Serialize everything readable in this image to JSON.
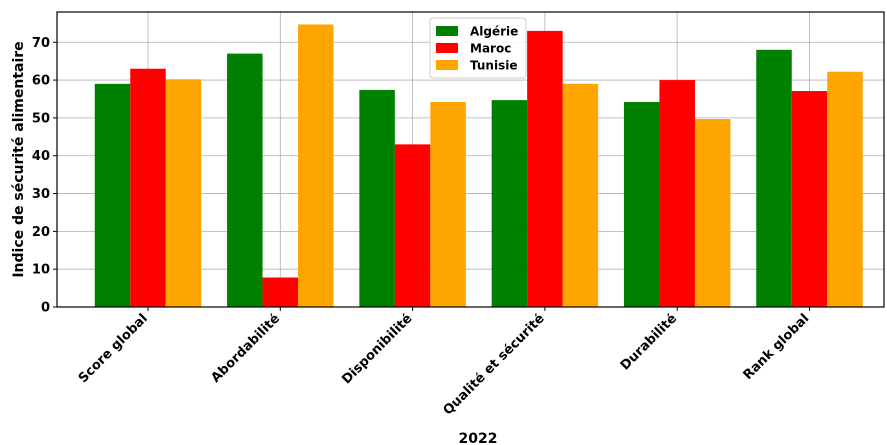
{
  "chart_data": {
    "type": "bar",
    "categories": [
      "Score global",
      "Abordabilité",
      "Disponibilité",
      "Qualité et sécurité",
      "Durabilité",
      "Rank global"
    ],
    "series": [
      {
        "name": "Algérie",
        "color": "#008000",
        "values": [
          59,
          67,
          57.4,
          54.7,
          54.2,
          68
        ]
      },
      {
        "name": "Maroc",
        "color": "#ff0000",
        "values": [
          63,
          7.8,
          43,
          73,
          60,
          57.1
        ]
      },
      {
        "name": "Tunisie",
        "color": "#ffa500",
        "values": [
          60.2,
          74.7,
          54.2,
          59,
          49.7,
          62.2
        ]
      }
    ],
    "xlabel": "2022",
    "ylabel": "Indice de sécurité alimentaire",
    "ylim": [
      0,
      78
    ],
    "yticks": [
      0,
      10,
      20,
      30,
      40,
      50,
      60,
      70
    ],
    "grid": true,
    "legend_position": "top-center"
  }
}
